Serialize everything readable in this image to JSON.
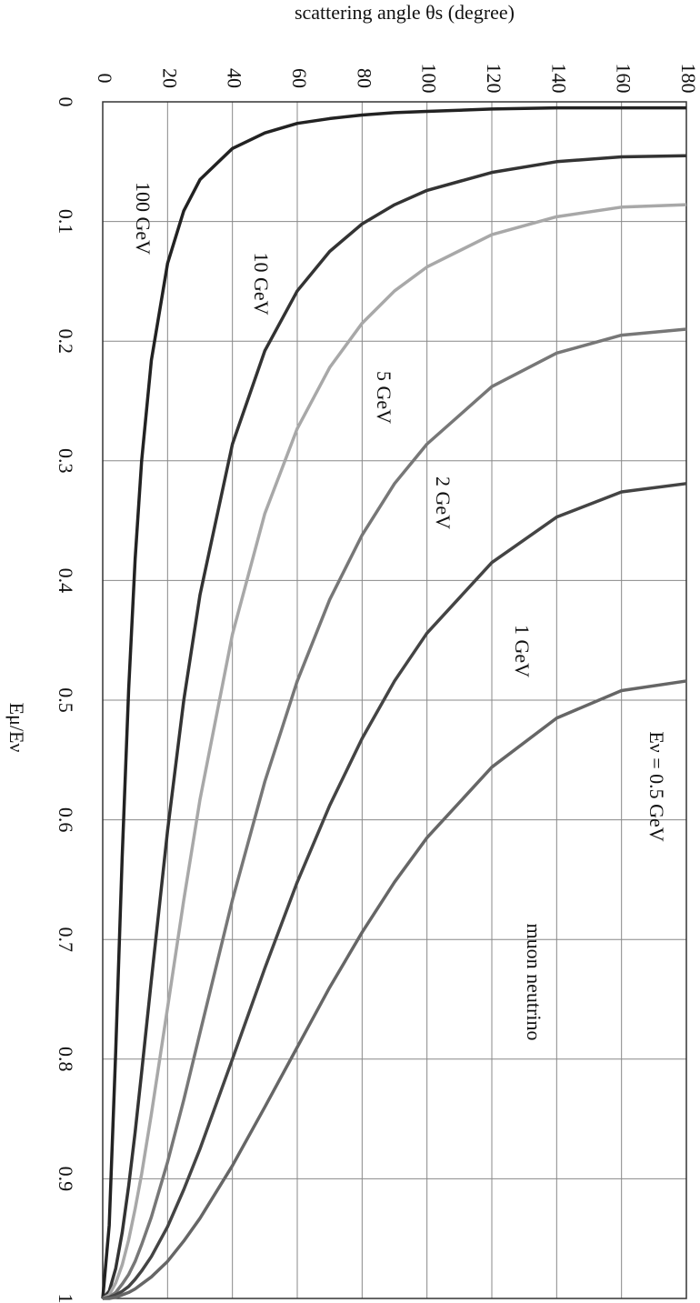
{
  "chart_data": {
    "type": "line",
    "title": "scattering angle θs  (degree)",
    "y_label": "Eμ/Eν",
    "annotation": "muon neutrino",
    "x": [
      0,
      2,
      4,
      6,
      8,
      10,
      12,
      15,
      20,
      25,
      30,
      40,
      50,
      60,
      70,
      80,
      90,
      100,
      120,
      140,
      160,
      180
    ],
    "xlim": [
      0,
      180
    ],
    "xticks": [
      0,
      20,
      40,
      60,
      80,
      100,
      120,
      140,
      160,
      180
    ],
    "ylim": [
      0,
      1
    ],
    "yticks": [
      0,
      0.1,
      0.2,
      0.3,
      0.4,
      0.5,
      0.6,
      0.7,
      0.8,
      0.9,
      1
    ],
    "y_inverted": true,
    "grid": true,
    "series": [
      {
        "name": "100 GeV",
        "color": "#222222",
        "values": [
          1,
          0.939,
          0.794,
          0.631,
          0.491,
          0.382,
          0.3,
          0.216,
          0.135,
          0.091,
          0.065,
          0.039,
          0.026,
          0.018,
          0.014,
          0.011,
          0.009,
          0.008,
          0.006,
          0.005,
          0.005,
          0.005
        ]
      },
      {
        "name": "10 GeV",
        "color": "#333333",
        "values": [
          1,
          0.994,
          0.975,
          0.945,
          0.906,
          0.861,
          0.811,
          0.734,
          0.609,
          0.5,
          0.412,
          0.286,
          0.208,
          0.158,
          0.125,
          0.102,
          0.086,
          0.074,
          0.059,
          0.05,
          0.046,
          0.045
        ]
      },
      {
        "name": "5 GeV",
        "color": "#a8a8a8",
        "values": [
          1,
          0.997,
          0.987,
          0.972,
          0.951,
          0.925,
          0.896,
          0.846,
          0.757,
          0.667,
          0.583,
          0.445,
          0.344,
          0.273,
          0.222,
          0.185,
          0.158,
          0.138,
          0.111,
          0.096,
          0.088,
          0.086
        ]
      },
      {
        "name": "2 GeV",
        "color": "#777777",
        "values": [
          1,
          0.999,
          0.995,
          0.988,
          0.98,
          0.969,
          0.955,
          0.932,
          0.886,
          0.834,
          0.778,
          0.667,
          0.568,
          0.484,
          0.416,
          0.362,
          0.319,
          0.286,
          0.238,
          0.21,
          0.195,
          0.19
        ]
      },
      {
        "name": "1 GeV",
        "color": "#444444",
        "values": [
          1,
          0.999,
          0.997,
          0.994,
          0.99,
          0.984,
          0.977,
          0.965,
          0.94,
          0.909,
          0.875,
          0.8,
          0.724,
          0.652,
          0.588,
          0.532,
          0.484,
          0.444,
          0.385,
          0.347,
          0.326,
          0.319
        ]
      },
      {
        "name": "Eν = 0.5 GeV",
        "color": "#666666",
        "values": [
          1,
          1.0,
          0.999,
          0.997,
          0.995,
          0.992,
          0.988,
          0.982,
          0.969,
          0.952,
          0.933,
          0.889,
          0.84,
          0.79,
          0.74,
          0.694,
          0.652,
          0.615,
          0.556,
          0.515,
          0.492,
          0.484
        ]
      }
    ]
  }
}
